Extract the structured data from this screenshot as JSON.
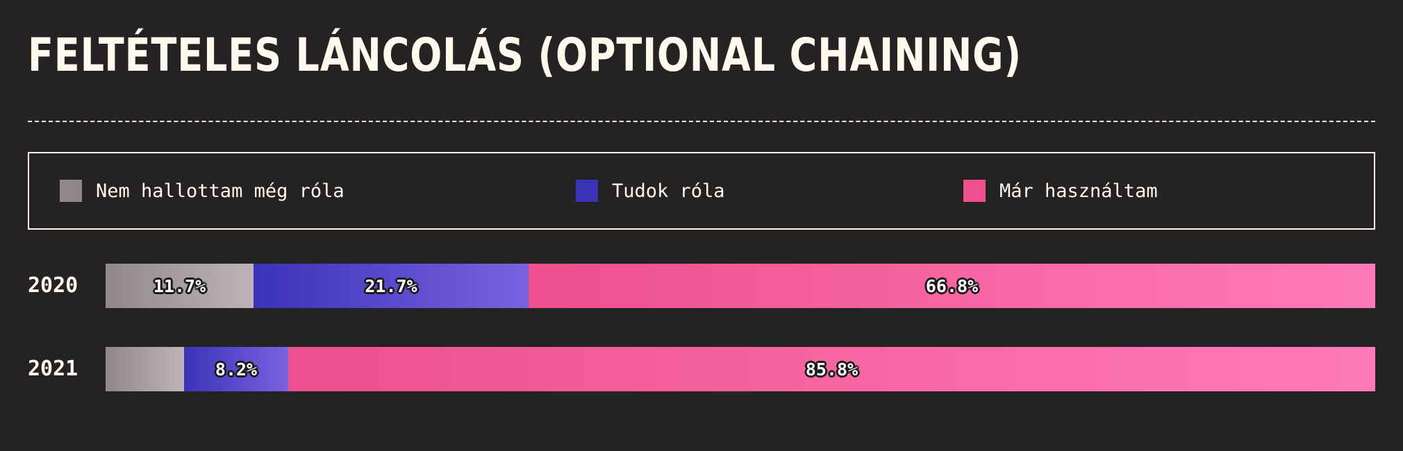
{
  "title": "FELTÉTELES LÁNCOLÁS (OPTIONAL CHAINING)",
  "legend": [
    {
      "label": "Nem hallottam még róla",
      "color": "#8f8789"
    },
    {
      "label": "Tudok róla",
      "color": "#3a33b8"
    },
    {
      "label": "Már használtam",
      "color": "#ee4f8d"
    }
  ],
  "chart_data": {
    "type": "bar",
    "orientation": "horizontal-stacked-100",
    "categories": [
      "2020",
      "2021"
    ],
    "series": [
      {
        "name": "Nem hallottam még róla",
        "values": [
          11.7,
          6.2
        ],
        "labels": [
          "11.7%",
          ""
        ],
        "gradient": [
          "#8f8789",
          "#bcb4b6"
        ]
      },
      {
        "name": "Tudok róla",
        "values": [
          21.7,
          8.2
        ],
        "labels": [
          "21.7%",
          "8.2%"
        ],
        "gradient": [
          "#3a33b8",
          "#7a62e0"
        ]
      },
      {
        "name": "Már használtam",
        "values": [
          66.8,
          85.8
        ],
        "labels": [
          "66.8%",
          "85.8%"
        ],
        "gradient": [
          "#ee4f8d",
          "#ff7ab8"
        ]
      }
    ],
    "xlim": [
      0,
      100
    ],
    "legend_position": "top"
  }
}
